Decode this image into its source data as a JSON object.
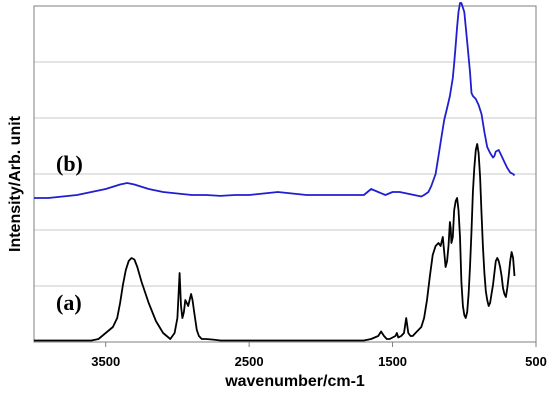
{
  "chart_data": {
    "type": "line",
    "xlabel": "wavenumber/cm-1",
    "ylabel": "Intensity/Arb. unit",
    "xlim": [
      4000,
      500
    ],
    "x_reversed": true,
    "ylim": [
      0,
      1.12
    ],
    "x_ticks": [
      3500,
      2500,
      1500,
      500
    ],
    "x_tick_labels": [
      "3500",
      "2500",
      "1500",
      "500"
    ],
    "y_tick_labels_shown": false,
    "grid": "horizontal",
    "series": [
      {
        "name": "(b)",
        "color": "#1f1fd0",
        "x": [
          4000,
          3900,
          3800,
          3700,
          3600,
          3500,
          3400,
          3350,
          3300,
          3200,
          3100,
          3000,
          2900,
          2800,
          2700,
          2600,
          2500,
          2400,
          2300,
          2200,
          2100,
          2000,
          1900,
          1800,
          1700,
          1650,
          1600,
          1550,
          1500,
          1450,
          1400,
          1350,
          1300,
          1280,
          1250,
          1230,
          1200,
          1180,
          1160,
          1140,
          1120,
          1100,
          1080,
          1070,
          1060,
          1050,
          1040,
          1030,
          1020,
          1000,
          980,
          960,
          950,
          940,
          920,
          900,
          880,
          860,
          840,
          820,
          800,
          790,
          780,
          760,
          740,
          720,
          700,
          680,
          660,
          650
        ],
        "y": [
          0.48,
          0.48,
          0.485,
          0.49,
          0.5,
          0.51,
          0.525,
          0.53,
          0.525,
          0.51,
          0.5,
          0.495,
          0.49,
          0.49,
          0.487,
          0.49,
          0.49,
          0.495,
          0.5,
          0.495,
          0.49,
          0.49,
          0.49,
          0.49,
          0.49,
          0.51,
          0.5,
          0.49,
          0.5,
          0.5,
          0.495,
          0.49,
          0.485,
          0.49,
          0.5,
          0.52,
          0.56,
          0.62,
          0.68,
          0.74,
          0.78,
          0.82,
          0.88,
          0.93,
          0.99,
          1.05,
          1.1,
          1.13,
          1.13,
          1.1,
          1.0,
          0.9,
          0.83,
          0.82,
          0.81,
          0.79,
          0.76,
          0.7,
          0.65,
          0.63,
          0.615,
          0.62,
          0.635,
          0.64,
          0.62,
          0.6,
          0.58,
          0.565,
          0.56,
          0.555
        ]
      },
      {
        "name": "(a)",
        "color": "#000000",
        "x": [
          4000,
          3800,
          3600,
          3550,
          3500,
          3450,
          3420,
          3400,
          3380,
          3360,
          3340,
          3320,
          3300,
          3280,
          3250,
          3200,
          3150,
          3100,
          3050,
          3020,
          3000,
          2985,
          2975,
          2965,
          2955,
          2945,
          2935,
          2925,
          2915,
          2905,
          2895,
          2880,
          2865,
          2850,
          2830,
          2800,
          2750,
          2700,
          2600,
          2500,
          2400,
          2300,
          2200,
          2100,
          2000,
          1900,
          1800,
          1700,
          1650,
          1600,
          1580,
          1560,
          1540,
          1520,
          1500,
          1480,
          1470,
          1460,
          1440,
          1420,
          1405,
          1390,
          1375,
          1360,
          1340,
          1320,
          1300,
          1280,
          1260,
          1240,
          1220,
          1200,
          1180,
          1165,
          1150,
          1140,
          1130,
          1120,
          1110,
          1100,
          1095,
          1090,
          1080,
          1070,
          1060,
          1050,
          1040,
          1030,
          1020,
          1010,
          1000,
          990,
          980,
          970,
          960,
          950,
          940,
          930,
          920,
          910,
          900,
          890,
          880,
          870,
          860,
          850,
          840,
          830,
          820,
          810,
          800,
          790,
          780,
          770,
          760,
          750,
          740,
          730,
          720,
          710,
          700,
          690,
          680,
          670,
          660,
          650
        ],
        "y": [
          0.005,
          0.005,
          0.005,
          0.01,
          0.03,
          0.05,
          0.08,
          0.13,
          0.19,
          0.24,
          0.27,
          0.28,
          0.275,
          0.25,
          0.2,
          0.13,
          0.07,
          0.03,
          0.01,
          0.03,
          0.08,
          0.23,
          0.12,
          0.08,
          0.1,
          0.14,
          0.13,
          0.12,
          0.14,
          0.16,
          0.14,
          0.09,
          0.04,
          0.02,
          0.01,
          0.01,
          0.008,
          0.005,
          0.005,
          0.005,
          0.005,
          0.005,
          0.005,
          0.005,
          0.005,
          0.005,
          0.005,
          0.005,
          0.01,
          0.02,
          0.035,
          0.02,
          0.01,
          0.01,
          0.015,
          0.02,
          0.03,
          0.015,
          0.02,
          0.03,
          0.08,
          0.03,
          0.02,
          0.02,
          0.03,
          0.04,
          0.05,
          0.08,
          0.14,
          0.22,
          0.29,
          0.32,
          0.33,
          0.32,
          0.35,
          0.3,
          0.25,
          0.27,
          0.32,
          0.4,
          0.38,
          0.33,
          0.35,
          0.44,
          0.47,
          0.48,
          0.44,
          0.35,
          0.2,
          0.12,
          0.09,
          0.08,
          0.1,
          0.16,
          0.25,
          0.37,
          0.5,
          0.58,
          0.64,
          0.66,
          0.63,
          0.55,
          0.43,
          0.32,
          0.23,
          0.17,
          0.14,
          0.12,
          0.13,
          0.16,
          0.19,
          0.23,
          0.27,
          0.28,
          0.27,
          0.25,
          0.22,
          0.18,
          0.16,
          0.15,
          0.18,
          0.22,
          0.27,
          0.3,
          0.28,
          0.22
        ]
      }
    ]
  }
}
